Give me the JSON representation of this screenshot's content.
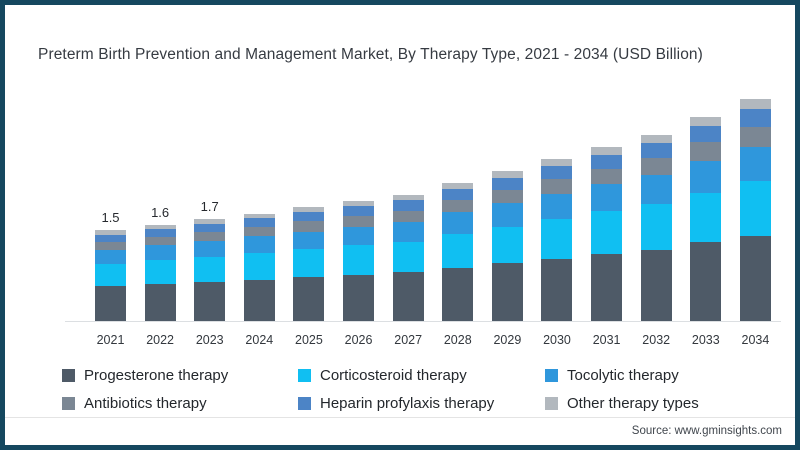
{
  "page": {
    "title": "Preterm Birth Prevention and Management Market, By Therapy Type, 2021 - 2034 (USD Billion)",
    "source_text": "Source: www.gminsights.com",
    "colors": {
      "frame": "#15485f",
      "background": "#ffffff",
      "axis_line": "#dcdfe2"
    }
  },
  "chart_data": {
    "type": "bar",
    "stacked": true,
    "title": "Preterm Birth Prevention and Management Market, By Therapy Type, 2021 - 2034 (USD Billion)",
    "unit": "USD Billion",
    "categories": [
      "2021",
      "2022",
      "2023",
      "2024",
      "2025",
      "2026",
      "2027",
      "2028",
      "2029",
      "2030",
      "2031",
      "2032",
      "2033",
      "2034"
    ],
    "totals": [
      1.5,
      1.6,
      1.7,
      1.8,
      1.9,
      2.0,
      2.1,
      2.3,
      2.5,
      2.7,
      2.9,
      3.1,
      3.4,
      3.7
    ],
    "value_labels": [
      "1.5",
      "1.6",
      "1.7",
      "",
      "",
      "",
      "",
      "",
      "",
      "",
      "",
      "",
      "",
      ""
    ],
    "ylim": [
      0,
      4
    ],
    "grid": false,
    "legend_position": "bottom",
    "series": [
      {
        "name": "Progesterone therapy",
        "color": "#4e5a67",
        "values": [
          0.58,
          0.62,
          0.65,
          0.69,
          0.73,
          0.77,
          0.81,
          0.89,
          0.96,
          1.04,
          1.12,
          1.19,
          1.31,
          1.42
        ]
      },
      {
        "name": "Corticosteroid therapy",
        "color": "#10bff2",
        "values": [
          0.37,
          0.39,
          0.42,
          0.44,
          0.47,
          0.49,
          0.51,
          0.56,
          0.61,
          0.66,
          0.71,
          0.76,
          0.83,
          0.91
        ]
      },
      {
        "name": "Tocolytic therapy",
        "color": "#2f97dc",
        "values": [
          0.23,
          0.25,
          0.26,
          0.28,
          0.29,
          0.31,
          0.33,
          0.36,
          0.39,
          0.42,
          0.45,
          0.48,
          0.53,
          0.57
        ]
      },
      {
        "name": "Antibiotics therapy",
        "color": "#7b8794",
        "values": [
          0.14,
          0.14,
          0.15,
          0.16,
          0.17,
          0.18,
          0.19,
          0.21,
          0.23,
          0.24,
          0.26,
          0.28,
          0.31,
          0.33
        ]
      },
      {
        "name": "Heparin profylaxis therapy",
        "color": "#4c84c6",
        "values": [
          0.12,
          0.13,
          0.14,
          0.14,
          0.15,
          0.16,
          0.17,
          0.18,
          0.2,
          0.22,
          0.23,
          0.25,
          0.27,
          0.3
        ]
      },
      {
        "name": "Other therapy types",
        "color": "#b2b8be",
        "values": [
          0.07,
          0.07,
          0.08,
          0.08,
          0.09,
          0.09,
          0.09,
          0.1,
          0.11,
          0.12,
          0.13,
          0.14,
          0.15,
          0.17
        ]
      }
    ],
    "legend_columns": [
      [
        0,
        3
      ],
      [
        1,
        4
      ],
      [
        2,
        5
      ]
    ],
    "legend_column_widths": [
      236,
      247,
      0
    ]
  }
}
